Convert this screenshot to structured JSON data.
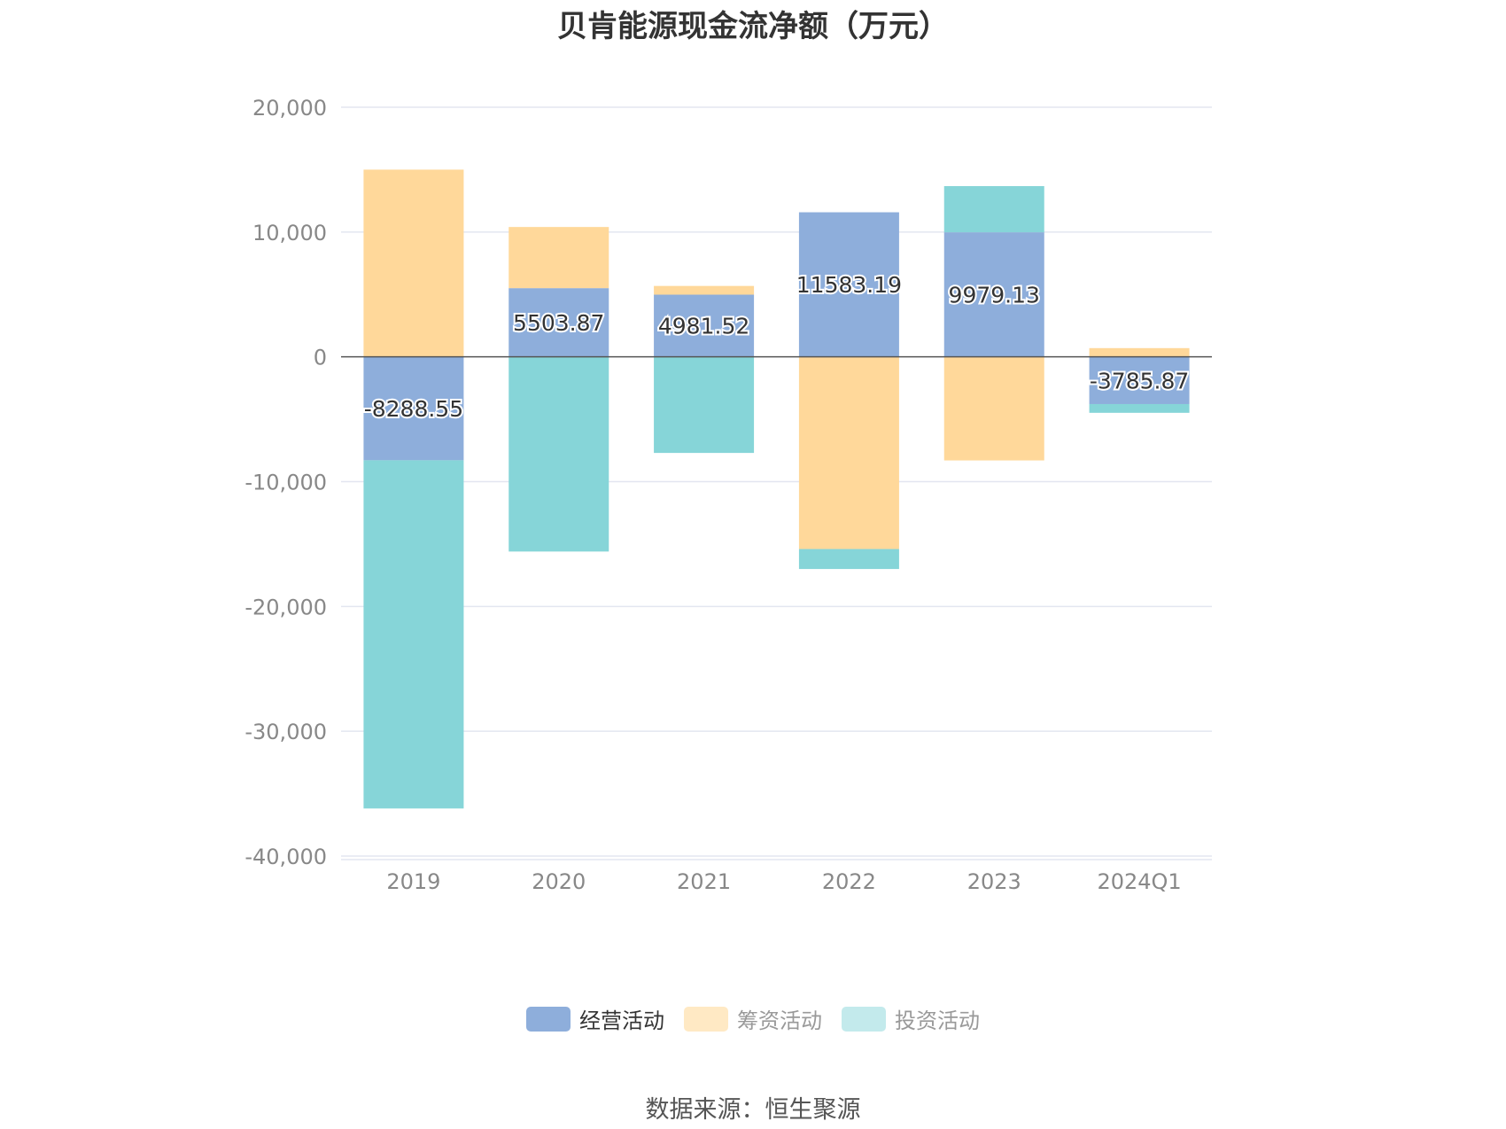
{
  "title": "贝肯能源现金流净额（万元）",
  "source": "数据来源：恒生聚源",
  "chart_data": {
    "type": "bar",
    "stacked": true,
    "title": "贝肯能源现金流净额（万元）",
    "categories": [
      "2019",
      "2020",
      "2021",
      "2022",
      "2023",
      "2024Q1"
    ],
    "ylim": [
      -40000,
      20000
    ],
    "yticks": [
      20000,
      10000,
      0,
      -10000,
      -20000,
      -30000,
      -40000
    ],
    "ytick_labels": [
      "20,000",
      "10,000",
      "0",
      "-10,000",
      "-20,000",
      "-30,000",
      "-40,000"
    ],
    "grid": true,
    "legend_position": "bottom",
    "series": [
      {
        "name": "经营活动",
        "color": "#8eaedb",
        "values": [
          -8288.55,
          5503.87,
          4981.52,
          11583.19,
          9979.13,
          -3785.87
        ],
        "labels": [
          "-8288.55",
          "5503.87",
          "4981.52",
          "11583.19",
          "9979.13",
          "-3785.87"
        ]
      },
      {
        "name": "筹资活动",
        "color": "#ffd89a",
        "values": [
          15000,
          4900,
          700,
          -15400,
          -8300,
          700
        ]
      },
      {
        "name": "投资活动",
        "color": "#86d5d8",
        "values": [
          -27900,
          -15600,
          -7700,
          -1600,
          3700,
          -700
        ]
      }
    ]
  }
}
